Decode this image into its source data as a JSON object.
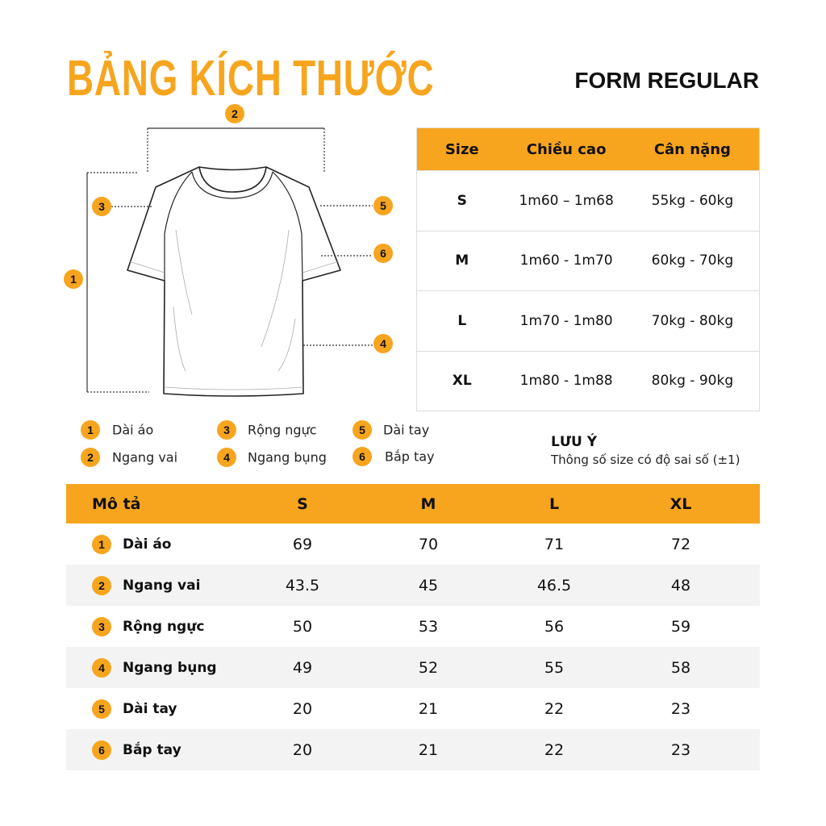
{
  "header": {
    "title": "BẢNG KÍCH THƯỚC",
    "form": "FORM REGULAR"
  },
  "accent_color": "#F7A51E",
  "diagram": {
    "markers": [
      "1",
      "2",
      "3",
      "4",
      "5",
      "6"
    ]
  },
  "size_table": {
    "headers": [
      "Size",
      "Chiều cao",
      "Cân nặng"
    ],
    "rows": [
      [
        "S",
        "1m60 – 1m68",
        "55kg - 60kg"
      ],
      [
        "M",
        "1m60 - 1m70",
        "60kg - 70kg"
      ],
      [
        "L",
        "1m70 - 1m80",
        "70kg - 80kg"
      ],
      [
        "XL",
        "1m80 - 1m88",
        "80kg - 90kg"
      ]
    ]
  },
  "legend": [
    {
      "num": "1",
      "label": "Dài áo"
    },
    {
      "num": "2",
      "label": "Ngang vai"
    },
    {
      "num": "3",
      "label": "Rộng ngực"
    },
    {
      "num": "4",
      "label": "Ngang bụng"
    },
    {
      "num": "5",
      "label": "Dài tay"
    },
    {
      "num": "6",
      "label": "Bắp tay"
    }
  ],
  "note": {
    "title": "LƯU Ý",
    "text": "Thông số size có độ sai số (±1)"
  },
  "measure_table": {
    "headers": [
      "Mô tả",
      "S",
      "M",
      "L",
      "XL"
    ],
    "rows": [
      {
        "num": "1",
        "label": "Dài áo",
        "values": [
          "69",
          "70",
          "71",
          "72"
        ]
      },
      {
        "num": "2",
        "label": "Ngang vai",
        "values": [
          "43.5",
          "45",
          "46.5",
          "48"
        ]
      },
      {
        "num": "3",
        "label": "Rộng ngực",
        "values": [
          "50",
          "53",
          "56",
          "59"
        ]
      },
      {
        "num": "4",
        "label": "Ngang bụng",
        "values": [
          "49",
          "52",
          "55",
          "58"
        ]
      },
      {
        "num": "5",
        "label": "Dài tay",
        "values": [
          "20",
          "21",
          "22",
          "23"
        ]
      },
      {
        "num": "6",
        "label": "Bắp tay",
        "values": [
          "20",
          "21",
          "22",
          "23"
        ]
      }
    ]
  }
}
